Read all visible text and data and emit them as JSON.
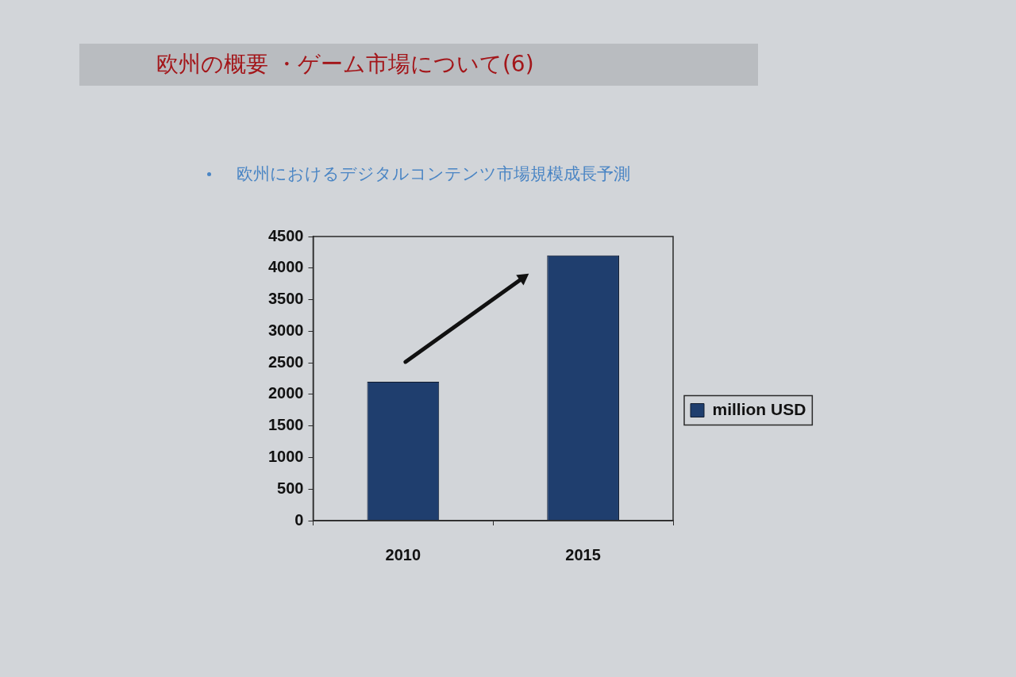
{
  "chart_data": {
    "type": "bar",
    "title": "欧州の概要 ・ゲーム市場について(6)",
    "subtitle": "欧州におけるデジタルコンテンツ市場規模成長予測",
    "categories": [
      "2010",
      "2015"
    ],
    "series": [
      {
        "name": "million USD",
        "color": "#1f3e6e",
        "values": [
          2200,
          4200
        ]
      }
    ],
    "ylim": [
      0,
      4500
    ],
    "yticks": [
      0,
      500,
      1000,
      1500,
      2000,
      2500,
      3000,
      3500,
      4000,
      4500
    ],
    "grid": false,
    "legend": "right"
  }
}
